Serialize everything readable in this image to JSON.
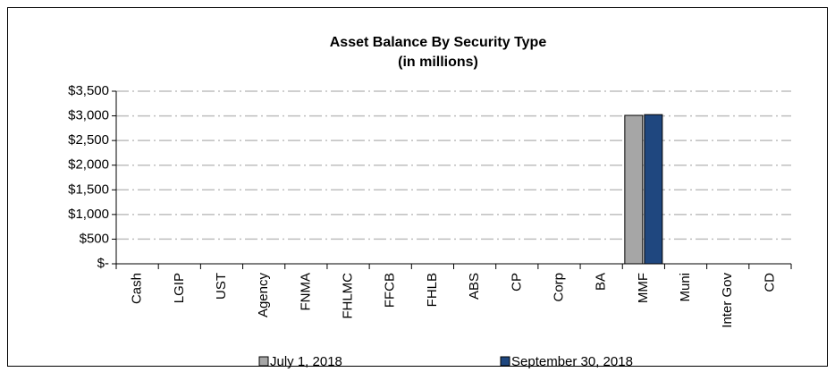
{
  "chart_data": {
    "type": "bar",
    "title": "Asset Balance By Security Type",
    "subtitle": "(in millions)",
    "categories": [
      "Cash",
      "LGIP",
      "UST",
      "Agency",
      "FNMA",
      "FHLMC",
      "FFCB",
      "FHLB",
      "ABS",
      "CP",
      "Corp",
      "BA",
      "MMF",
      "Muni",
      "Inter Gov",
      "CD"
    ],
    "series": [
      {
        "name": "July 1, 2018",
        "color": "#a6a6a6",
        "values": [
          0,
          0,
          0,
          0,
          0,
          0,
          0,
          0,
          0,
          0,
          0,
          0,
          3010,
          0,
          0,
          0
        ]
      },
      {
        "name": "September 30, 2018",
        "color": "#1f477f",
        "values": [
          0,
          0,
          0,
          0,
          0,
          0,
          0,
          0,
          0,
          0,
          0,
          0,
          3025,
          0,
          0,
          0
        ]
      }
    ],
    "ylim": [
      0,
      3500
    ],
    "yticks": [
      {
        "value": 0,
        "label": "$-"
      },
      {
        "value": 500,
        "label": "$500"
      },
      {
        "value": 1000,
        "label": "$1,000"
      },
      {
        "value": 1500,
        "label": "$1,500"
      },
      {
        "value": 2000,
        "label": "$2,000"
      },
      {
        "value": 2500,
        "label": "$2,500"
      },
      {
        "value": 3000,
        "label": "$3,000"
      },
      {
        "value": 3500,
        "label": "$3,500"
      }
    ],
    "grid": true,
    "legend": "bottom"
  }
}
